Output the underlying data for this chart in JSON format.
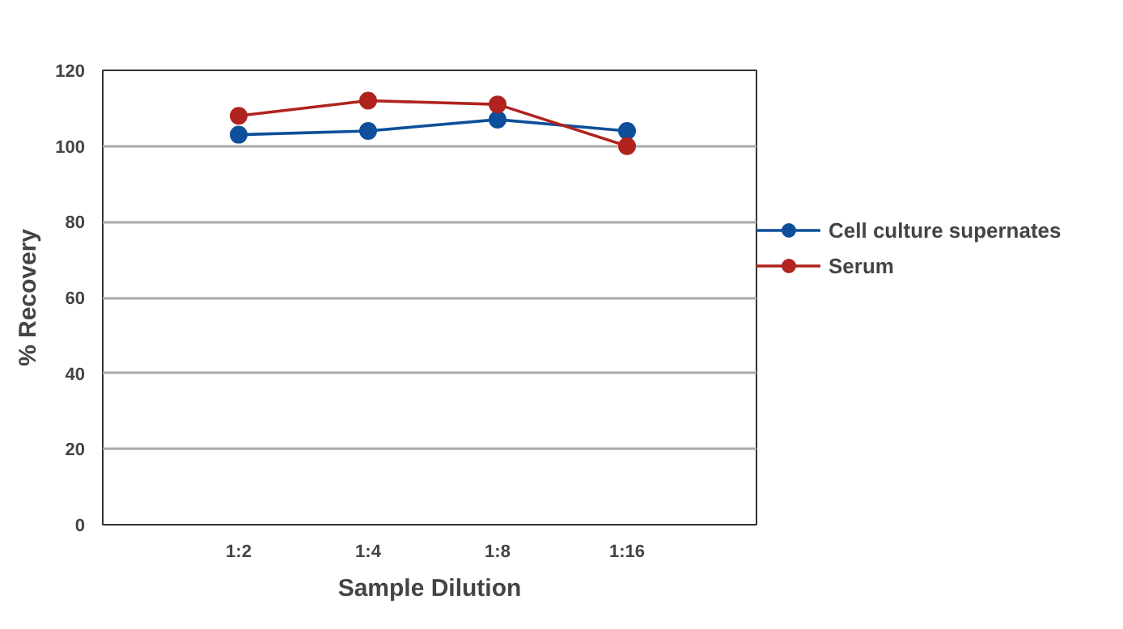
{
  "chart_data": {
    "type": "line",
    "xlabel": "Sample Dilution",
    "ylabel": "% Recovery",
    "categories": [
      "1:2",
      "1:4",
      "1:8",
      "1:16"
    ],
    "series": [
      {
        "name": "Cell culture supernates",
        "color": "#0d4f9a",
        "values": [
          103,
          104,
          107,
          104
        ]
      },
      {
        "name": "Serum",
        "color": "#b0231e",
        "values": [
          108,
          112,
          111,
          100
        ]
      }
    ],
    "ylim": [
      0,
      120
    ],
    "yticks": [
      0,
      20,
      40,
      60,
      80,
      100,
      120
    ],
    "grid": "y",
    "legend": "right",
    "marker": "circle",
    "line_style": "solid"
  }
}
